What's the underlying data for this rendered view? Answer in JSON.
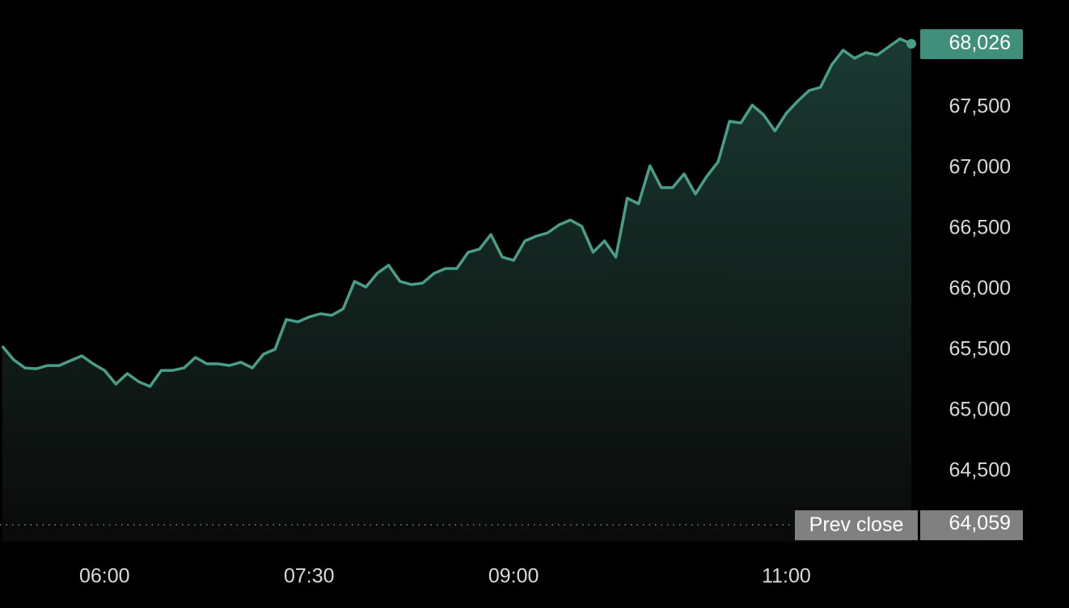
{
  "chart_data": {
    "type": "line",
    "x": [
      "05:15",
      "05:20",
      "05:25",
      "05:30",
      "05:35",
      "05:40",
      "05:45",
      "05:50",
      "05:55",
      "06:00",
      "06:05",
      "06:10",
      "06:15",
      "06:20",
      "06:25",
      "06:30",
      "06:35",
      "06:40",
      "06:45",
      "06:50",
      "06:55",
      "07:00",
      "07:05",
      "07:10",
      "07:15",
      "07:20",
      "07:25",
      "07:30",
      "07:35",
      "07:40",
      "07:45",
      "07:50",
      "07:55",
      "08:00",
      "08:05",
      "08:10",
      "08:15",
      "08:20",
      "08:25",
      "08:30",
      "08:35",
      "08:40",
      "08:45",
      "08:50",
      "08:55",
      "09:00",
      "09:05",
      "09:10",
      "09:15",
      "09:20",
      "09:25",
      "09:30",
      "09:35",
      "09:40",
      "09:45",
      "09:50",
      "09:55",
      "10:00",
      "10:05",
      "10:10",
      "10:15",
      "10:20",
      "10:25",
      "10:30",
      "10:35",
      "10:40",
      "10:45",
      "10:50",
      "10:55",
      "11:00",
      "11:05",
      "11:10",
      "11:15",
      "11:20",
      "11:25",
      "11:30",
      "11:35",
      "11:40",
      "11:45",
      "11:50",
      "11:55"
    ],
    "values": [
      65533,
      65420,
      65353,
      65347,
      65373,
      65373,
      65413,
      65453,
      65387,
      65333,
      65220,
      65307,
      65240,
      65200,
      65333,
      65333,
      65353,
      65440,
      65387,
      65387,
      65373,
      65400,
      65353,
      65467,
      65507,
      65753,
      65733,
      65773,
      65800,
      65787,
      65840,
      66067,
      66020,
      66133,
      66200,
      66067,
      66040,
      66053,
      66133,
      66173,
      66173,
      66307,
      66333,
      66453,
      66267,
      66240,
      66400,
      66440,
      66467,
      66533,
      66573,
      66520,
      66307,
      66400,
      66267,
      66753,
      66707,
      67020,
      66840,
      66840,
      66953,
      66787,
      66933,
      67053,
      67387,
      67373,
      67520,
      67440,
      67307,
      67453,
      67553,
      67640,
      67667,
      67853,
      67973,
      67907,
      67953,
      67933,
      68000,
      68067,
      68026
    ],
    "color": "#4a9d87",
    "xlim": [
      "05:14",
      "11:55"
    ],
    "xticks": [
      "06:00",
      "07:30",
      "09:00",
      "11:00"
    ],
    "ylim": [
      63920,
      68387
    ],
    "yticks": [
      {
        "value": 64500,
        "label": "64,500"
      },
      {
        "value": 65000,
        "label": "65,000"
      },
      {
        "value": 65500,
        "label": "65,500"
      },
      {
        "value": 66000,
        "label": "66,000"
      },
      {
        "value": 66500,
        "label": "66,500"
      },
      {
        "value": 67000,
        "label": "67,000"
      },
      {
        "value": 67500,
        "label": "67,500"
      }
    ],
    "current": {
      "value": 68026,
      "label": "68,026"
    },
    "prev_close": {
      "name": "Prev close",
      "value": 64059,
      "label": "64,059"
    }
  }
}
